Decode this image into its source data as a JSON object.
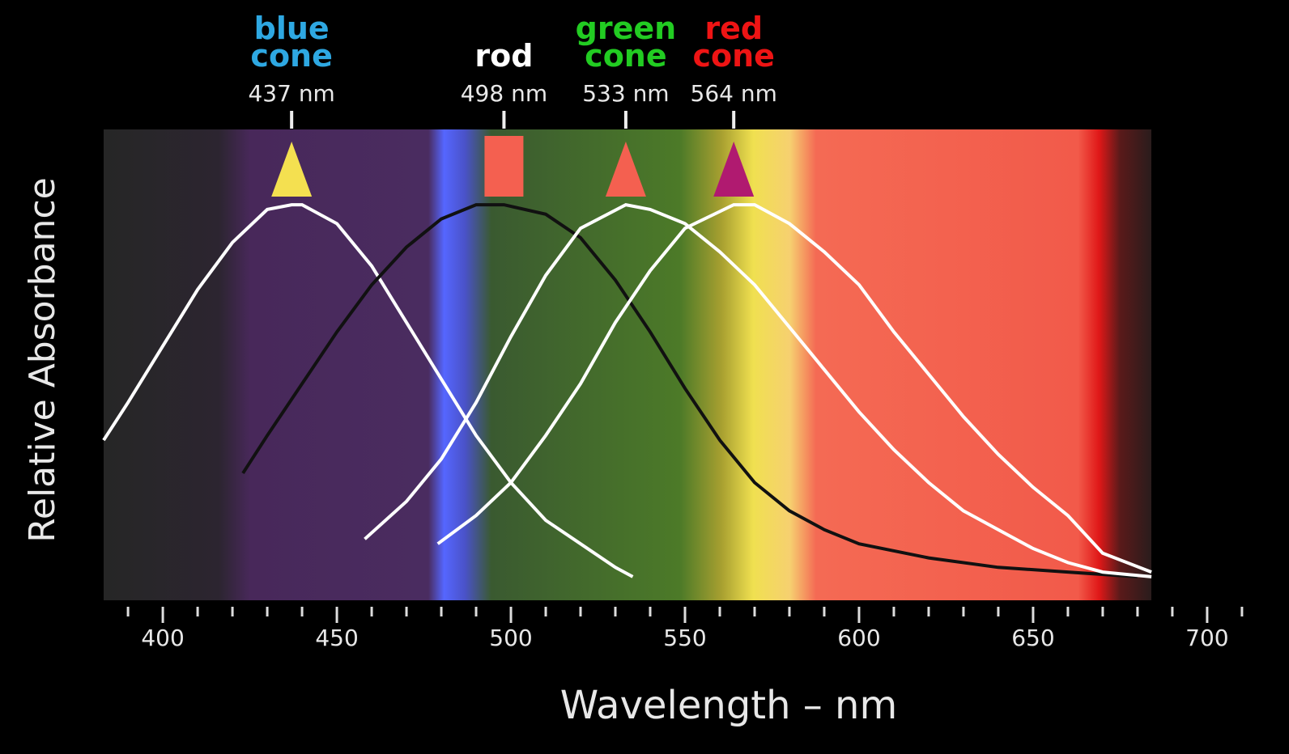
{
  "chart_data": {
    "type": "line",
    "x_label": "Wavelength – nm",
    "y_label": "Relative Absorbance",
    "xlim": [
      383,
      707
    ],
    "xticks": [
      400,
      450,
      500,
      550,
      600,
      650,
      700
    ],
    "xticks_minor": [
      390,
      410,
      420,
      430,
      440,
      460,
      470,
      480,
      490,
      510,
      520,
      530,
      540,
      560,
      570,
      580,
      590,
      610,
      620,
      630,
      640,
      660,
      670,
      680,
      690,
      710
    ],
    "ylim": [
      0,
      1
    ],
    "series": [
      {
        "name": "blue cone",
        "label_color": "#2ea8e2",
        "color": "#ffffff",
        "marker": "triangle",
        "marker_color": "#f4e050",
        "peak": 437,
        "peak_label": "437 nm",
        "x": [
          383,
          390,
          400,
          410,
          420,
          430,
          437,
          440,
          450,
          460,
          470,
          480,
          490,
          500,
          510,
          520,
          530,
          535
        ],
        "values": [
          0.34,
          0.42,
          0.54,
          0.66,
          0.76,
          0.83,
          0.84,
          0.84,
          0.8,
          0.71,
          0.59,
          0.47,
          0.35,
          0.25,
          0.17,
          0.12,
          0.07,
          0.05
        ]
      },
      {
        "name": "rod",
        "label_color": "#ffffff",
        "color": "#111111",
        "marker": "square",
        "marker_color": "#f46050",
        "peak": 498,
        "peak_label": "498 nm",
        "x": [
          423,
          430,
          440,
          450,
          460,
          470,
          480,
          490,
          498,
          510,
          520,
          530,
          540,
          550,
          560,
          570,
          580,
          590,
          600,
          620,
          640,
          660,
          680
        ],
        "values": [
          0.27,
          0.35,
          0.46,
          0.57,
          0.67,
          0.75,
          0.81,
          0.84,
          0.84,
          0.82,
          0.77,
          0.68,
          0.57,
          0.45,
          0.34,
          0.25,
          0.19,
          0.15,
          0.12,
          0.09,
          0.07,
          0.06,
          0.05
        ]
      },
      {
        "name": "green cone",
        "label_color": "#22cc22",
        "color": "#ffffff",
        "marker": "triangle",
        "marker_color": "#f46050",
        "peak": 533,
        "peak_label": "533 nm",
        "x": [
          458,
          470,
          480,
          490,
          500,
          510,
          520,
          533,
          540,
          550,
          560,
          570,
          580,
          590,
          600,
          610,
          620,
          630,
          640,
          650,
          660,
          670,
          684
        ],
        "values": [
          0.13,
          0.21,
          0.3,
          0.42,
          0.56,
          0.69,
          0.79,
          0.84,
          0.83,
          0.8,
          0.74,
          0.67,
          0.58,
          0.49,
          0.4,
          0.32,
          0.25,
          0.19,
          0.15,
          0.11,
          0.08,
          0.06,
          0.05
        ]
      },
      {
        "name": "red cone",
        "label_color": "#ee1414",
        "color": "#ffffff",
        "marker": "triangle",
        "marker_color": "#b01a70",
        "peak": 564,
        "peak_label": "564 nm",
        "x": [
          479,
          490,
          500,
          510,
          520,
          530,
          540,
          550,
          564,
          570,
          580,
          590,
          600,
          610,
          620,
          630,
          640,
          650,
          660,
          670,
          684
        ],
        "values": [
          0.12,
          0.18,
          0.25,
          0.35,
          0.46,
          0.59,
          0.7,
          0.79,
          0.84,
          0.84,
          0.8,
          0.74,
          0.67,
          0.57,
          0.48,
          0.39,
          0.31,
          0.24,
          0.18,
          0.1,
          0.06
        ]
      }
    ]
  }
}
